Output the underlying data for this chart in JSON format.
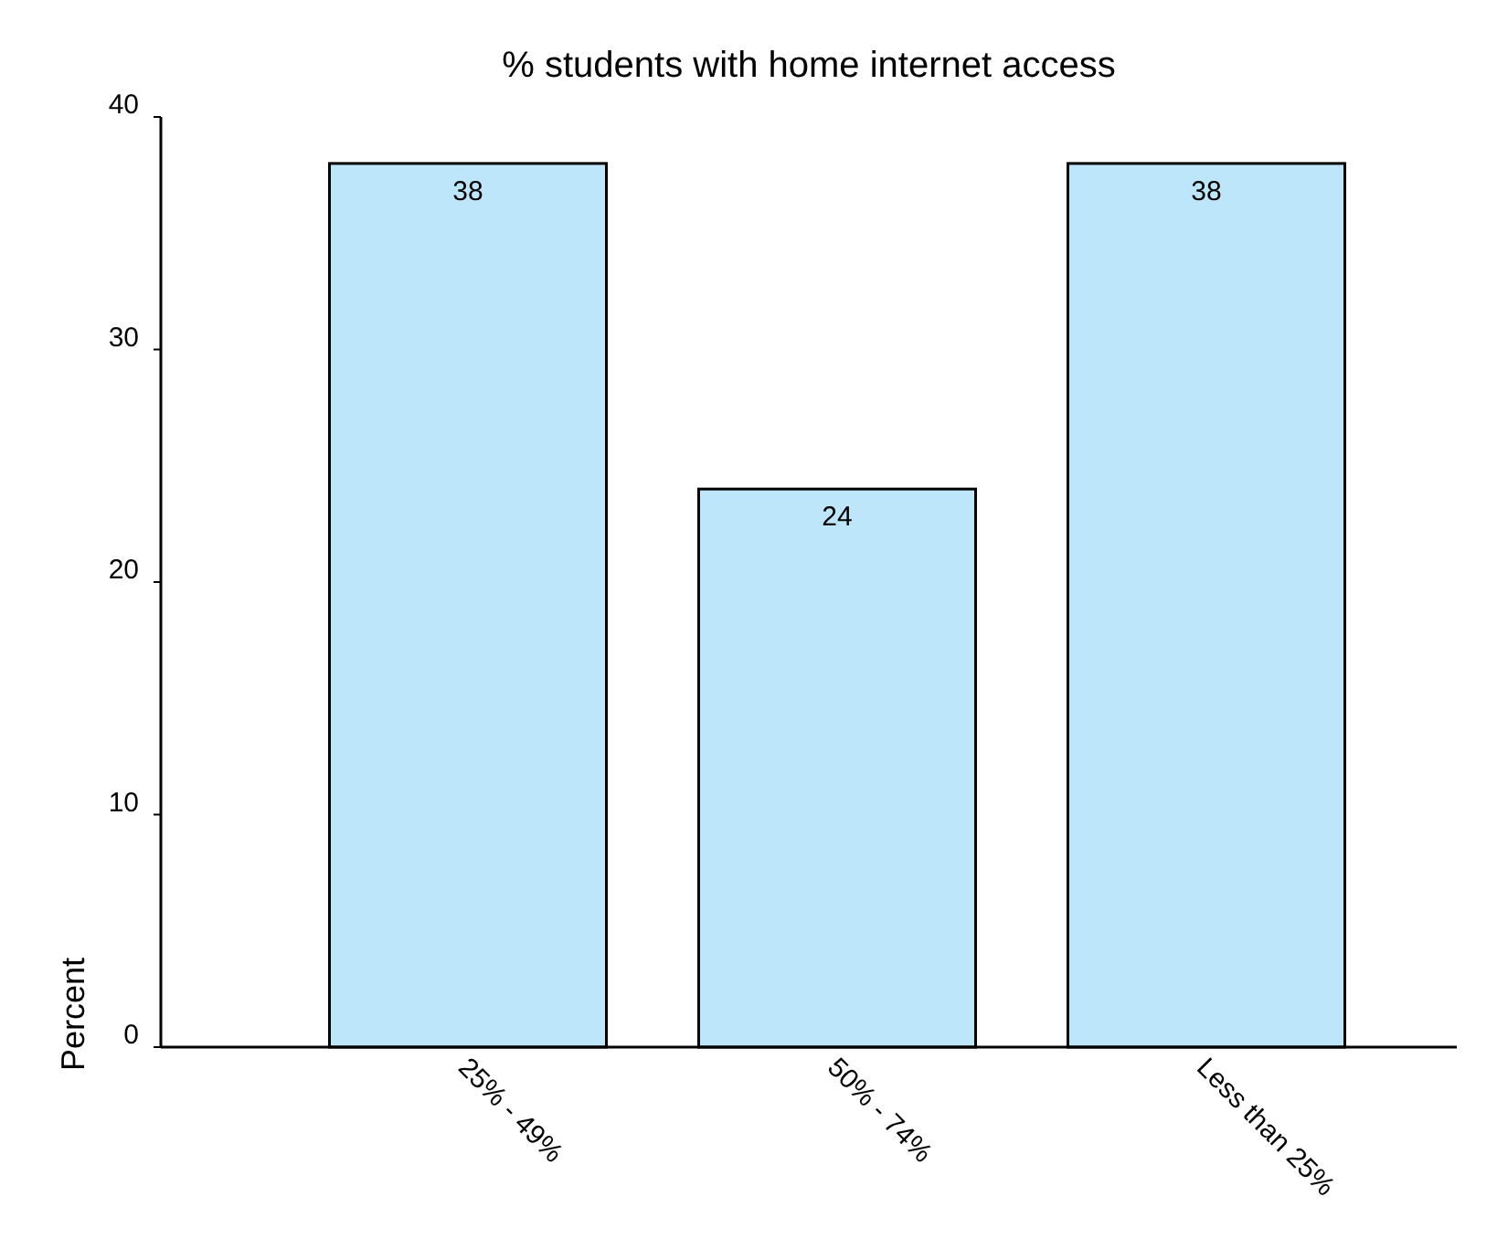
{
  "chart_data": {
    "type": "bar",
    "title": "% students with home internet access",
    "ylabel": "Percent",
    "categories": [
      "25% - 49%",
      "50% - 74%",
      "Less than 25%"
    ],
    "values": [
      38,
      24,
      38
    ],
    "color": "#bde6fa",
    "data_labels": true,
    "ylim": [
      0,
      40
    ],
    "yticks": [
      0,
      10,
      20,
      30,
      40
    ],
    "grid": false
  }
}
